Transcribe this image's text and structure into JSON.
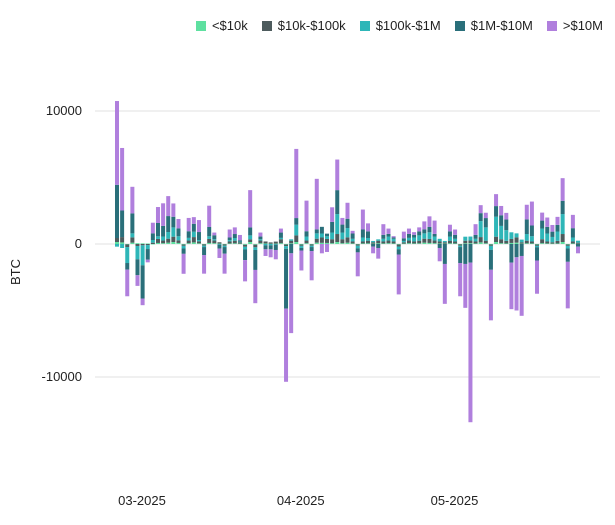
{
  "chart_data": {
    "type": "bar",
    "stacked": true,
    "title": "",
    "xlabel": "",
    "ylabel": "BTC",
    "ylim": [
      -16500,
      11000
    ],
    "yticks": [
      10000,
      0,
      -10000
    ],
    "ytick_labels": [
      "10000",
      "0",
      "-10000"
    ],
    "xtick_labels": [
      {
        "label": "03-2025",
        "index": 0
      },
      {
        "label": "04-2025",
        "index": 31
      },
      {
        "label": "05-2025",
        "index": 61
      }
    ],
    "grid": true,
    "legend_position": "top-right",
    "categories": [
      "2025-02-27",
      "2025-02-28",
      "2025-03-01",
      "2025-03-02",
      "2025-03-03",
      "2025-03-04",
      "2025-03-05",
      "2025-03-06",
      "2025-03-07",
      "2025-03-08",
      "2025-03-09",
      "2025-03-10",
      "2025-03-11",
      "2025-03-12",
      "2025-03-13",
      "2025-03-14",
      "2025-03-15",
      "2025-03-16",
      "2025-03-17",
      "2025-03-18",
      "2025-03-19",
      "2025-03-20",
      "2025-03-21",
      "2025-03-22",
      "2025-03-23",
      "2025-03-24",
      "2025-03-25",
      "2025-03-26",
      "2025-03-27",
      "2025-03-28",
      "2025-03-29",
      "2025-03-30",
      "2025-03-31",
      "2025-04-01",
      "2025-04-02",
      "2025-04-03",
      "2025-04-04",
      "2025-04-05",
      "2025-04-06",
      "2025-04-07",
      "2025-04-08",
      "2025-04-09",
      "2025-04-10",
      "2025-04-11",
      "2025-04-12",
      "2025-04-13",
      "2025-04-14",
      "2025-04-15",
      "2025-04-16",
      "2025-04-17",
      "2025-04-18",
      "2025-04-19",
      "2025-04-20",
      "2025-04-21",
      "2025-04-22",
      "2025-04-23",
      "2025-04-24",
      "2025-04-25",
      "2025-04-26",
      "2025-04-27",
      "2025-04-28",
      "2025-04-29",
      "2025-04-30",
      "2025-05-01",
      "2025-05-02",
      "2025-05-03",
      "2025-05-04",
      "2025-05-05",
      "2025-05-06",
      "2025-05-07",
      "2025-05-08",
      "2025-05-09",
      "2025-05-10",
      "2025-05-11",
      "2025-05-12",
      "2025-05-13",
      "2025-05-14",
      "2025-05-15",
      "2025-05-16",
      "2025-05-17",
      "2025-05-18",
      "2025-05-19",
      "2025-05-20",
      "2025-05-21",
      "2025-05-22",
      "2025-05-23",
      "2025-05-24",
      "2025-05-25",
      "2025-05-26",
      "2025-05-27",
      "2025-05-28"
    ],
    "series": [
      {
        "name": "<$10k",
        "color": "#5ee0a0",
        "values": [
          150,
          120,
          -30,
          100,
          60,
          50,
          40,
          -30,
          80,
          60,
          100,
          150,
          80,
          -40,
          60,
          120,
          50,
          -30,
          80,
          60,
          30,
          -30,
          40,
          50,
          30,
          -60,
          150,
          -50,
          60,
          40,
          20,
          30,
          60,
          -40,
          50,
          150,
          -40,
          60,
          -30,
          100,
          90,
          80,
          60,
          150,
          60,
          100,
          40,
          -30,
          40,
          50,
          30,
          50,
          40,
          60,
          40,
          -40,
          30,
          60,
          40,
          50,
          100,
          80,
          60,
          40,
          30,
          50,
          40,
          -30,
          50,
          60,
          40,
          120,
          50,
          -40,
          150,
          60,
          40,
          80,
          100,
          30,
          50,
          40,
          -40,
          60,
          40,
          30,
          40,
          150,
          -40,
          40,
          20
        ]
      },
      {
        "name": "$10k-$100k",
        "color": "#4d5b5d",
        "values": [
          300,
          400,
          -200,
          400,
          -150,
          -100,
          -80,
          100,
          300,
          200,
          300,
          400,
          200,
          -100,
          200,
          400,
          150,
          -100,
          300,
          200,
          100,
          -100,
          150,
          200,
          100,
          -150,
          200,
          -200,
          200,
          150,
          100,
          150,
          300,
          -120,
          200,
          500,
          -100,
          200,
          -100,
          300,
          400,
          300,
          300,
          600,
          300,
          400,
          150,
          -100,
          150,
          200,
          100,
          200,
          150,
          200,
          150,
          -150,
          100,
          200,
          150,
          200,
          300,
          300,
          200,
          150,
          100,
          200,
          150,
          -100,
          200,
          200,
          150,
          400,
          200,
          -100,
          400,
          300,
          200,
          300,
          400,
          100,
          200,
          150,
          -100,
          300,
          150,
          100,
          200,
          600,
          -100,
          150,
          80
        ]
      },
      {
        "name": "$100k-$1M",
        "color": "#2eb6b8",
        "values": [
          -200,
          -300,
          -1200,
          300,
          -1000,
          -1500,
          -300,
          200,
          200,
          300,
          500,
          700,
          300,
          -200,
          200,
          400,
          100,
          -100,
          200,
          100,
          -50,
          -100,
          100,
          200,
          50,
          -200,
          300,
          -200,
          100,
          -100,
          -100,
          -50,
          100,
          -200,
          100,
          800,
          -150,
          300,
          -100,
          400,
          300,
          200,
          500,
          1500,
          500,
          700,
          200,
          -200,
          300,
          200,
          100,
          100,
          200,
          300,
          200,
          -200,
          100,
          200,
          300,
          400,
          400,
          500,
          300,
          200,
          100,
          300,
          200,
          -100,
          300,
          300,
          200,
          1200,
          1000,
          -300,
          1500,
          1000,
          800,
          500,
          300,
          200,
          500,
          400,
          -100,
          800,
          600,
          400,
          700,
          1500,
          -200,
          300,
          150
        ]
      },
      {
        "name": "$1M-$10M",
        "color": "#2a6f7a",
        "values": [
          4000,
          2000,
          -500,
          1500,
          -1200,
          -2500,
          -800,
          500,
          1000,
          800,
          1200,
          800,
          600,
          -400,
          500,
          600,
          600,
          -600,
          700,
          300,
          -300,
          -500,
          200,
          300,
          100,
          -800,
          600,
          -1500,
          200,
          -300,
          -300,
          -400,
          400,
          -4500,
          -700,
          500,
          -200,
          400,
          -300,
          300,
          500,
          200,
          800,
          1800,
          600,
          700,
          400,
          -300,
          600,
          500,
          -200,
          -300,
          300,
          200,
          100,
          -400,
          200,
          300,
          200,
          300,
          300,
          400,
          200,
          -300,
          -1500,
          400,
          300,
          -1200,
          -1500,
          -1400,
          300,
          600,
          700,
          -1500,
          800,
          800,
          800,
          -1400,
          -1000,
          -900,
          1100,
          800,
          -1000,
          600,
          500,
          400,
          500,
          1000,
          -1000,
          700,
          -200
        ]
      },
      {
        "name": ">$10M",
        "color": "#b07fdd",
        "values": [
          6300,
          4700,
          -2000,
          2000,
          -800,
          -500,
          -200,
          800,
          1200,
          1700,
          1500,
          1000,
          700,
          -1500,
          1000,
          500,
          900,
          -1400,
          1600,
          200,
          -700,
          -1500,
          600,
          500,
          400,
          -1600,
          2800,
          -2500,
          300,
          -500,
          -600,
          -700,
          300,
          -5500,
          -6000,
          5200,
          -1500,
          2300,
          -2200,
          3800,
          -700,
          -600,
          1100,
          2300,
          500,
          1200,
          200,
          -1800,
          1500,
          600,
          -500,
          -800,
          800,
          400,
          100,
          -3000,
          500,
          400,
          200,
          300,
          600,
          800,
          1000,
          -1000,
          -3000,
          500,
          400,
          -2500,
          -3300,
          -12000,
          800,
          600,
          400,
          -3800,
          900,
          700,
          500,
          -3500,
          -4000,
          -4500,
          1100,
          1800,
          -2500,
          600,
          700,
          500,
          600,
          1700,
          -3500,
          1000,
          -500
        ]
      }
    ]
  }
}
